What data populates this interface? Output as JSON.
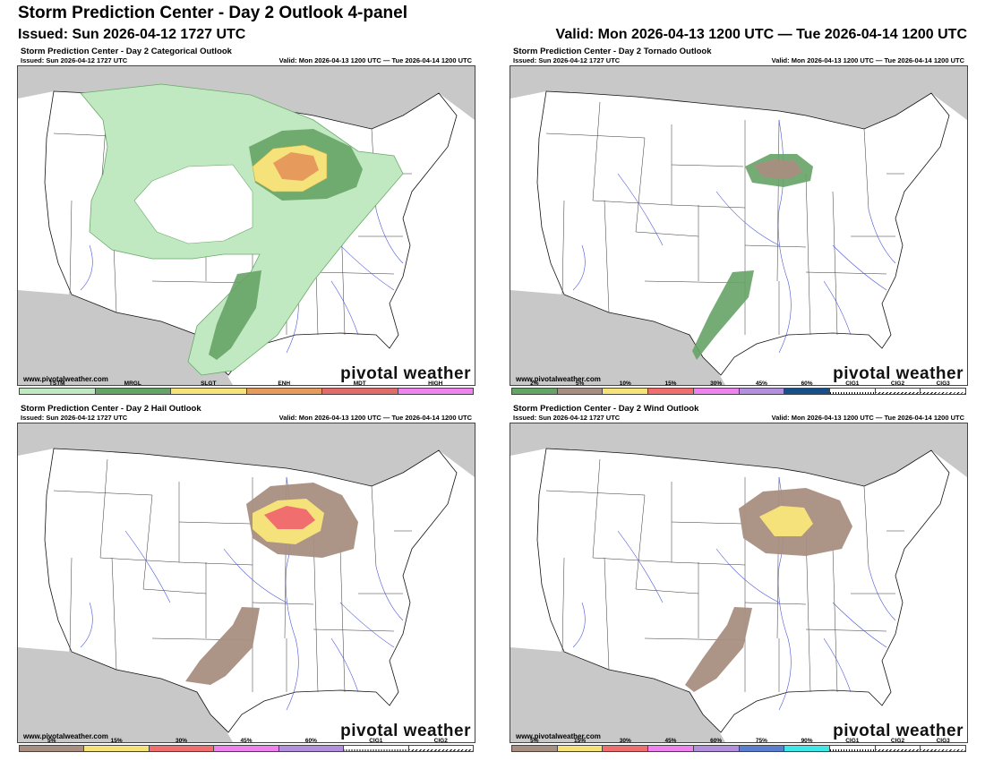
{
  "header": {
    "title": "Storm Prediction Center - Day 2 Outlook 4-panel",
    "issued": "Issued: Sun 2026-04-12 1727 UTC",
    "valid": "Valid: Mon 2026-04-13 1200 UTC — Tue 2026-04-14 1200 UTC"
  },
  "colors": {
    "canada": "#c8c8c8",
    "water": "#cfe3f2",
    "tstm": "#c1e9c1",
    "mrgl": "#66a366",
    "slgt": "#f6e27a",
    "enh": "#e69b5c",
    "mdt": "#e16c6c",
    "prob5": "#a88e80"
  },
  "panels": [
    {
      "id": "categorical",
      "title": "Storm Prediction Center - Day 2 Categorical Outlook",
      "issued": "Issued: Sun 2026-04-12 1727 UTC",
      "valid": "Valid: Mon 2026-04-13 1200 UTC — Tue 2026-04-14 1200 UTC",
      "site": "www.pivotalweather.com",
      "brand": "pivotal weather",
      "legend": [
        {
          "label": "TSTM",
          "color": "#c1e9c1"
        },
        {
          "label": "MRGL",
          "color": "#66a366"
        },
        {
          "label": "SLGT",
          "color": "#f6e27a"
        },
        {
          "label": "ENH",
          "color": "#e69b5c"
        },
        {
          "label": "MDT",
          "color": "#e16c6c"
        },
        {
          "label": "HIGH",
          "color": "#ee82ee"
        }
      ]
    },
    {
      "id": "tornado",
      "title": "Storm Prediction Center - Day 2 Tornado Outlook",
      "issued": "Issued: Sun 2026-04-12 1727 UTC",
      "valid": "Valid: Mon 2026-04-13 1200 UTC — Tue 2026-04-14 1200 UTC",
      "site": "www.pivotalweather.com",
      "brand": "pivotal weather",
      "legend": [
        {
          "label": "2%",
          "color": "#66a366"
        },
        {
          "label": "5%",
          "color": "#a88e80"
        },
        {
          "label": "10%",
          "color": "#f6e27a"
        },
        {
          "label": "15%",
          "color": "#f06e6e"
        },
        {
          "label": "30%",
          "color": "#ee82ee"
        },
        {
          "label": "45%",
          "color": "#b38fe0"
        },
        {
          "label": "60%",
          "color": "#174f8a"
        },
        {
          "label": "CIG1",
          "color": "#ffffff"
        },
        {
          "label": "CIG2",
          "color": "#ffffff"
        },
        {
          "label": "CIG3",
          "color": "#ffffff"
        }
      ]
    },
    {
      "id": "hail",
      "title": "Storm Prediction Center - Day 2 Hail Outlook",
      "issued": "Issued: Sun 2026-04-12 1727 UTC",
      "valid": "Valid: Mon 2026-04-13 1200 UTC — Tue 2026-04-14 1200 UTC",
      "site": "www.pivotalweather.com",
      "brand": "pivotal weather",
      "legend": [
        {
          "label": "5%",
          "color": "#a88e80"
        },
        {
          "label": "15%",
          "color": "#f6e27a"
        },
        {
          "label": "30%",
          "color": "#f06e6e"
        },
        {
          "label": "45%",
          "color": "#ee82ee"
        },
        {
          "label": "60%",
          "color": "#b38fe0"
        },
        {
          "label": "CIG1",
          "color": "#ffffff"
        },
        {
          "label": "CIG2",
          "color": "#ffffff"
        }
      ]
    },
    {
      "id": "wind",
      "title": "Storm Prediction Center - Day 2 Wind Outlook",
      "issued": "Issued: Sun 2026-04-12 1727 UTC",
      "valid": "Valid: Mon 2026-04-13 1200 UTC — Tue 2026-04-14 1200 UTC",
      "site": "www.pivotalweather.com",
      "brand": "pivotal weather",
      "legend": [
        {
          "label": "5%",
          "color": "#a88e80"
        },
        {
          "label": "15%",
          "color": "#f6e27a"
        },
        {
          "label": "30%",
          "color": "#f06e6e"
        },
        {
          "label": "45%",
          "color": "#ee82ee"
        },
        {
          "label": "60%",
          "color": "#b38fe0"
        },
        {
          "label": "75%",
          "color": "#5a7fd1"
        },
        {
          "label": "90%",
          "color": "#3fe8e8"
        },
        {
          "label": "CIG1",
          "color": "#ffffff"
        },
        {
          "label": "CIG2",
          "color": "#ffffff"
        },
        {
          "label": "CIG3",
          "color": "#ffffff"
        }
      ]
    }
  ]
}
